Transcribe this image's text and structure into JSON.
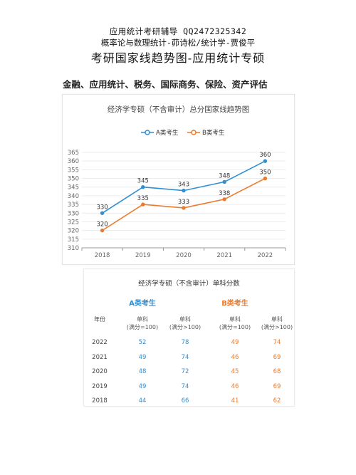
{
  "header": {
    "line1": "应用统计考研辅导 QQ2472325342",
    "line2": "概率论与数理统计-茆诗松/统计学-贾俊平",
    "line3": "考研国家线趋势图-应用统计专硕"
  },
  "subtitle": "金融、应用统计、税务、国际商务、保险、资产评估",
  "chart_data": {
    "type": "line",
    "title": "经济学专硕（不含审计）总分国家线趋势图",
    "categories": [
      "2018",
      "2019",
      "2020",
      "2021",
      "2022"
    ],
    "series": [
      {
        "name": "A类考生",
        "color": "#2f8fd3",
        "values": [
          330,
          345,
          343,
          348,
          360
        ]
      },
      {
        "name": "B类考生",
        "color": "#ec7a2c",
        "values": [
          320,
          335,
          333,
          338,
          350
        ]
      }
    ],
    "ylim": [
      310,
      365
    ],
    "yticks": [
      310,
      315,
      320,
      325,
      330,
      335,
      340,
      345,
      350,
      355,
      360,
      365
    ],
    "legend": "top-center",
    "grid": true
  },
  "table": {
    "title": "经济学专硕（不含审计）单科分数",
    "group_a": "A类考生",
    "group_b": "B类考生",
    "year_header": "年份",
    "col_headers": [
      [
        "单科",
        "(满分=100)"
      ],
      [
        "单科",
        "(满分>100)"
      ],
      [
        "单科",
        "(满分=100)"
      ],
      [
        "单科",
        "(满分>100)"
      ]
    ],
    "rows": [
      {
        "year": "2022",
        "vals": [
          "52",
          "78",
          "49",
          "74"
        ]
      },
      {
        "year": "2021",
        "vals": [
          "49",
          "74",
          "46",
          "69"
        ]
      },
      {
        "year": "2020",
        "vals": [
          "48",
          "72",
          "45",
          "68"
        ]
      },
      {
        "year": "2019",
        "vals": [
          "49",
          "74",
          "46",
          "69"
        ]
      },
      {
        "year": "2018",
        "vals": [
          "44",
          "66",
          "41",
          "62"
        ]
      }
    ]
  }
}
